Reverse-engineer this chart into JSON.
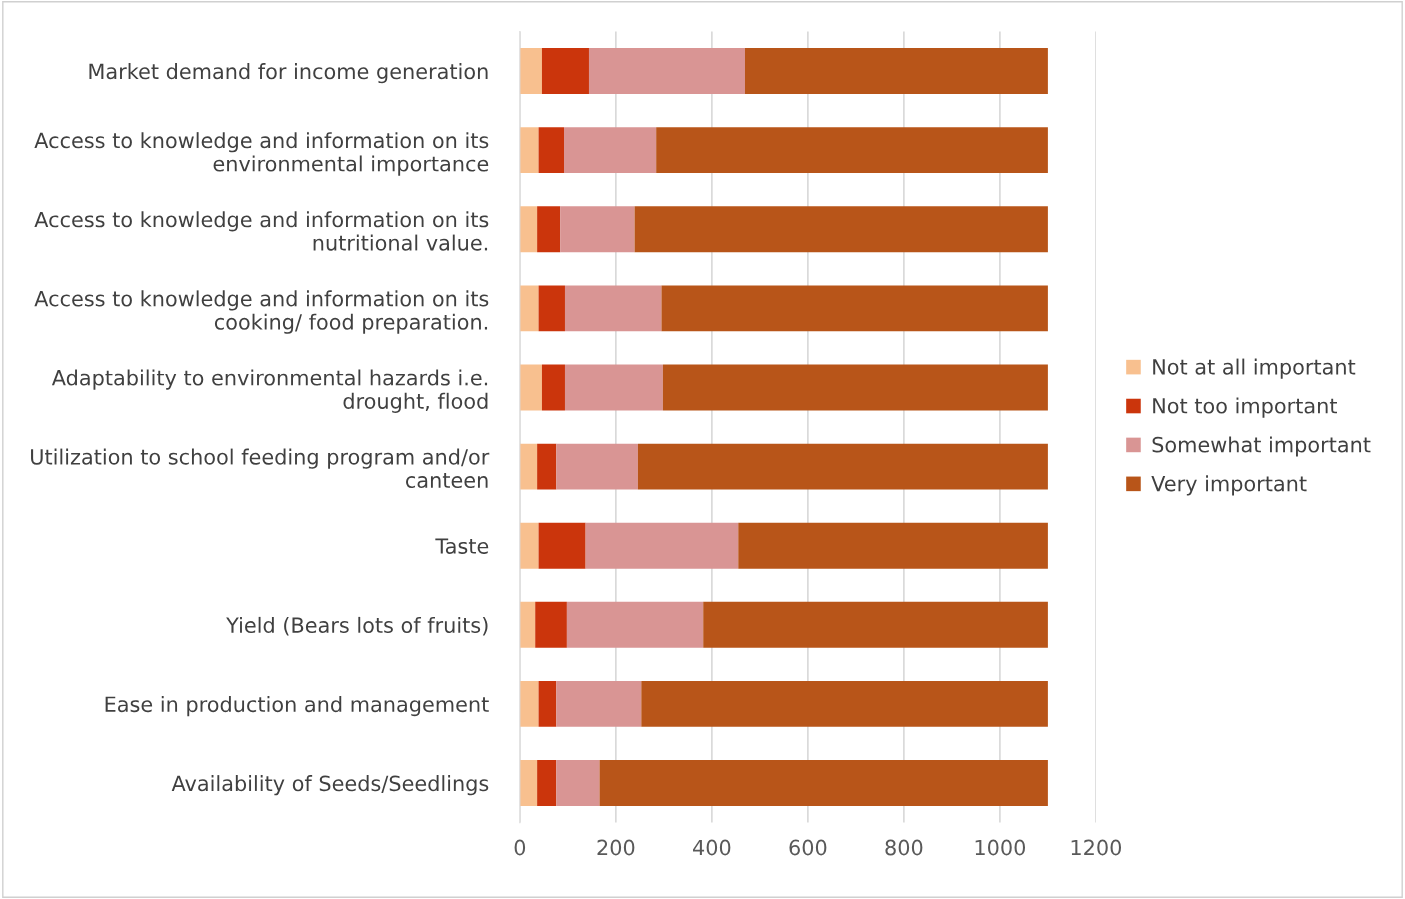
{
  "chart_data": {
    "type": "bar",
    "orientation": "horizontal",
    "stacked": true,
    "categories": [
      "Market demand for income generation",
      "Access to knowledge and information on its environmental importance",
      "Access to knowledge and information on its nutritional value.",
      "Access to knowledge and information on its cooking/ food preparation.",
      "Adaptability to environmental hazards i.e. drought, flood",
      "Utilization to school feeding program and/or canteen",
      "Taste",
      "Yield (Bears lots of fruits)",
      "Ease in production and management",
      "Availability of Seeds/Seedlings"
    ],
    "series": [
      {
        "name": "Not at all important",
        "color": "#f8c08f",
        "values": [
          46,
          39,
          36,
          39,
          46,
          36,
          39,
          32,
          39,
          36
        ]
      },
      {
        "name": "Not too important",
        "color": "#cb350c",
        "values": [
          98,
          53,
          48,
          55,
          48,
          40,
          98,
          66,
          37,
          40
        ]
      },
      {
        "name": "Somewhat important",
        "color": "#d99594",
        "values": [
          325,
          192,
          155,
          201,
          204,
          170,
          318,
          284,
          177,
          90
        ]
      },
      {
        "name": "Very important",
        "color": "#b85519",
        "values": [
          631,
          816,
          861,
          805,
          802,
          854,
          645,
          718,
          847,
          934
        ]
      }
    ],
    "xlim": [
      0,
      1200
    ],
    "xticks": [
      0,
      200,
      400,
      600,
      800,
      1000,
      1200
    ],
    "grid": "x",
    "legend": "right"
  }
}
